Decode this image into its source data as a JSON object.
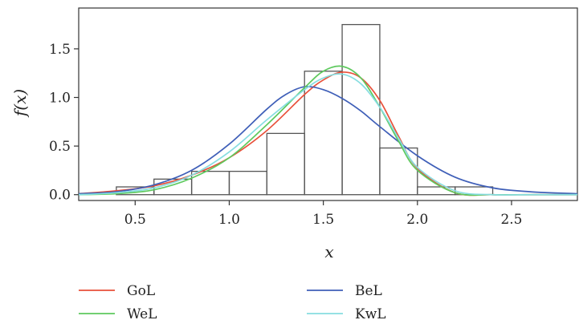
{
  "chart_data": {
    "type": "histogram",
    "xlabel": "x",
    "ylabel": "f(x)",
    "xlim": [
      0.2,
      2.85
    ],
    "ylim": [
      -0.06,
      1.92
    ],
    "xticks": [
      0.5,
      1.0,
      1.5,
      2.0,
      2.5
    ],
    "xtick_labels": [
      "0.5",
      "1.0",
      "1.5",
      "2.0",
      "2.5"
    ],
    "yticks": [
      0.0,
      0.5,
      1.0,
      1.5
    ],
    "ytick_labels": [
      "0.0",
      "0.5",
      "1.0",
      "1.5"
    ],
    "grid": false,
    "legend_position": "bottom",
    "histogram": {
      "bin_width": 0.2,
      "bin_starts": [
        0.4,
        0.6,
        0.8,
        1.0,
        1.2,
        1.4,
        1.6,
        1.8,
        2.0,
        2.2
      ],
      "densities": [
        0.08,
        0.16,
        0.24,
        0.24,
        0.63,
        1.27,
        1.75,
        0.48,
        0.08,
        0.08
      ],
      "edge_color": "#555555"
    },
    "series": [
      {
        "name": "GoL",
        "color": "#e8503a",
        "x": [
          0.2,
          0.4,
          0.6,
          0.8,
          1.0,
          1.2,
          1.4,
          1.5,
          1.6,
          1.7,
          1.8,
          1.9,
          2.0,
          2.2,
          2.4,
          2.6,
          2.85
        ],
        "y": [
          0.01,
          0.04,
          0.09,
          0.2,
          0.38,
          0.66,
          1.03,
          1.18,
          1.26,
          1.2,
          0.97,
          0.6,
          0.27,
          0.02,
          0.0,
          0.0,
          0.0
        ]
      },
      {
        "name": "BeL",
        "color": "#3f5fb8",
        "x": [
          0.2,
          0.4,
          0.6,
          0.8,
          1.0,
          1.2,
          1.3,
          1.4,
          1.5,
          1.6,
          1.7,
          1.8,
          2.0,
          2.2,
          2.4,
          2.6,
          2.85
        ],
        "y": [
          0.01,
          0.03,
          0.1,
          0.25,
          0.52,
          0.88,
          1.03,
          1.11,
          1.08,
          0.99,
          0.86,
          0.7,
          0.4,
          0.18,
          0.07,
          0.03,
          0.01
        ]
      },
      {
        "name": "WeL",
        "color": "#5ec95e",
        "x": [
          0.2,
          0.4,
          0.6,
          0.8,
          1.0,
          1.2,
          1.4,
          1.5,
          1.6,
          1.7,
          1.8,
          1.9,
          2.0,
          2.2,
          2.4,
          2.6,
          2.85
        ],
        "y": [
          0.0,
          0.01,
          0.05,
          0.17,
          0.38,
          0.72,
          1.1,
          1.27,
          1.32,
          1.2,
          0.9,
          0.55,
          0.25,
          0.02,
          0.0,
          0.0,
          0.0
        ]
      },
      {
        "name": "KwL",
        "color": "#86dde0",
        "x": [
          0.2,
          0.4,
          0.6,
          0.8,
          1.0,
          1.2,
          1.4,
          1.5,
          1.6,
          1.7,
          1.8,
          1.9,
          2.0,
          2.2,
          2.4,
          2.6,
          2.85
        ],
        "y": [
          0.0,
          0.02,
          0.07,
          0.2,
          0.44,
          0.77,
          1.08,
          1.2,
          1.24,
          1.14,
          0.9,
          0.58,
          0.28,
          0.04,
          0.0,
          0.0,
          0.0
        ]
      }
    ]
  }
}
